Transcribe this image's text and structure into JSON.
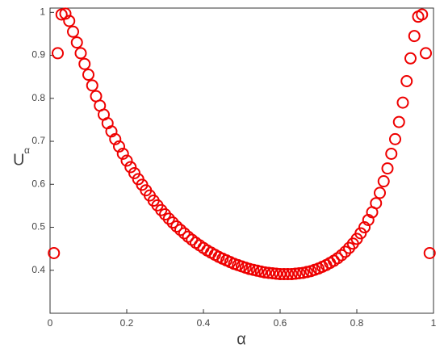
{
  "chart_data": {
    "type": "scatter",
    "xlabel": "α",
    "ylabel": "U",
    "ylabel_sup": "α",
    "color": "#ee0000",
    "xlim": [
      0,
      1
    ],
    "ylim": [
      0.3,
      1.01
    ],
    "xticks": [
      0,
      0.2,
      0.4,
      0.6,
      0.8,
      1
    ],
    "yticks": [
      0.4,
      0.5,
      0.6,
      0.7,
      0.8,
      0.9,
      1
    ],
    "series": [
      {
        "name": "U",
        "color": "#ee0000",
        "x": [
          0.01,
          0.02,
          0.03,
          0.04,
          0.05,
          0.06,
          0.07,
          0.08,
          0.09,
          0.1,
          0.11,
          0.12,
          0.13,
          0.14,
          0.15,
          0.16,
          0.17,
          0.18,
          0.19,
          0.2,
          0.21,
          0.22,
          0.23,
          0.24,
          0.25,
          0.26,
          0.27,
          0.28,
          0.29,
          0.3,
          0.31,
          0.32,
          0.33,
          0.34,
          0.35,
          0.36,
          0.37,
          0.38,
          0.39,
          0.4,
          0.41,
          0.42,
          0.43,
          0.44,
          0.45,
          0.46,
          0.47,
          0.48,
          0.49,
          0.5,
          0.51,
          0.52,
          0.53,
          0.54,
          0.55,
          0.56,
          0.57,
          0.58,
          0.59,
          0.6,
          0.61,
          0.62,
          0.63,
          0.64,
          0.65,
          0.66,
          0.67,
          0.68,
          0.69,
          0.7,
          0.71,
          0.72,
          0.73,
          0.74,
          0.75,
          0.76,
          0.77,
          0.78,
          0.79,
          0.8,
          0.81,
          0.82,
          0.83,
          0.84,
          0.85,
          0.86,
          0.87,
          0.88,
          0.89,
          0.9,
          0.91,
          0.92,
          0.93,
          0.94,
          0.95,
          0.96,
          0.97,
          0.98,
          0.99
        ],
        "values": [
          0.44,
          0.905,
          0.995,
          0.997,
          0.98,
          0.955,
          0.93,
          0.905,
          0.88,
          0.855,
          0.83,
          0.805,
          0.783,
          0.762,
          0.742,
          0.723,
          0.705,
          0.688,
          0.671,
          0.655,
          0.64,
          0.626,
          0.612,
          0.599,
          0.586,
          0.574,
          0.562,
          0.551,
          0.54,
          0.53,
          0.52,
          0.511,
          0.502,
          0.494,
          0.486,
          0.478,
          0.471,
          0.464,
          0.458,
          0.452,
          0.446,
          0.441,
          0.436,
          0.431,
          0.427,
          0.423,
          0.419,
          0.415,
          0.412,
          0.409,
          0.406,
          0.403,
          0.401,
          0.399,
          0.397,
          0.395,
          0.394,
          0.393,
          0.392,
          0.391,
          0.391,
          0.391,
          0.391,
          0.392,
          0.393,
          0.394,
          0.396,
          0.398,
          0.401,
          0.404,
          0.408,
          0.412,
          0.417,
          0.422,
          0.428,
          0.435,
          0.443,
          0.452,
          0.462,
          0.473,
          0.486,
          0.5,
          0.517,
          0.535,
          0.556,
          0.58,
          0.607,
          0.637,
          0.671,
          0.705,
          0.745,
          0.79,
          0.84,
          0.893,
          0.945,
          0.99,
          0.995,
          0.905,
          0.44
        ]
      }
    ]
  }
}
